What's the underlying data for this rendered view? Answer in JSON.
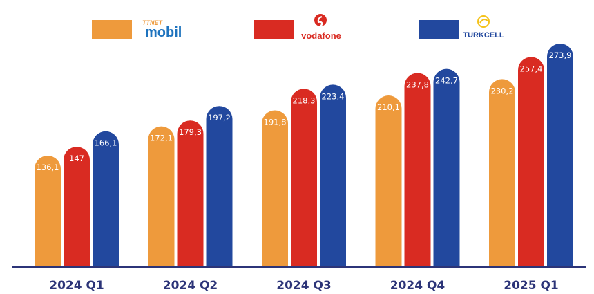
{
  "chart_data": {
    "type": "bar",
    "categories": [
      "2024 Q1",
      "2024 Q2",
      "2024 Q3",
      "2024 Q4",
      "2025 Q1"
    ],
    "series": [
      {
        "name": "TTNET mobil",
        "color": "#EE9A3C",
        "values": [
          136.1,
          172.1,
          191.8,
          210.1,
          230.2
        ],
        "labels": [
          "136,1",
          "172,1",
          "191,8",
          "210,1",
          "230,2"
        ]
      },
      {
        "name": "Vodafone",
        "color": "#D92B22",
        "values": [
          147,
          179.3,
          218.3,
          237.8,
          257.4
        ],
        "labels": [
          "147",
          "179,3",
          "218,3",
          "237,8",
          "257,4"
        ]
      },
      {
        "name": "TURKCELL",
        "color": "#22489E",
        "values": [
          166.1,
          197.2,
          223.4,
          242.7,
          273.9
        ],
        "labels": [
          "166,1",
          "197,2",
          "223,4",
          "242,7",
          "273,9"
        ]
      }
    ],
    "legend_logos": {
      "ttnet_top": "TTNET",
      "ttnet_bottom": "mobil",
      "vodafone": "vodafone",
      "turkcell": "TURKCELL"
    },
    "axis_color": "#2C3478",
    "ylim": [
      0,
      300
    ],
    "grid": false,
    "legend_position": "top",
    "title": "",
    "xlabel": "",
    "ylabel": ""
  }
}
